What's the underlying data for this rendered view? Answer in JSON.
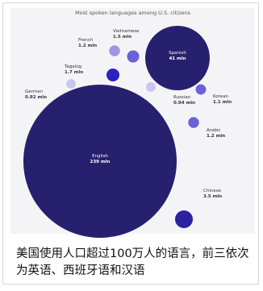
{
  "chart_data": {
    "type": "bubble",
    "title": "Most spoken languages among U.S. citizens",
    "unit": "mln",
    "series": [
      {
        "name": "English",
        "value": 239,
        "label": "239 mln",
        "color": "#27206e"
      },
      {
        "name": "Spanish",
        "value": 41,
        "label": "41 mln",
        "color": "#27206e"
      },
      {
        "name": "Chinese",
        "value": 3.5,
        "label": "3.5 mln",
        "color": "#2a22a0"
      },
      {
        "name": "Tagalog",
        "value": 1.7,
        "label": "1.7 mln",
        "color": "#2a22c2"
      },
      {
        "name": "Vietnamese",
        "value": 1.5,
        "label": "1.5 mln",
        "color": "#6a62d8"
      },
      {
        "name": "French",
        "value": 1.2,
        "label": "1.2 mln",
        "color": "#9c96e6"
      },
      {
        "name": "Arabic",
        "value": 1.2,
        "label": "1.2 mln",
        "color": "#6a62d8"
      },
      {
        "name": "Korean",
        "value": 1.1,
        "label": "1.1 mln",
        "color": "#6a62d8"
      },
      {
        "name": "German",
        "value": 0.92,
        "label": "0.92 mln",
        "color": "#c9c6f0"
      },
      {
        "name": "Russian",
        "value": 0.94,
        "label": "0.94 mln",
        "color": "#c9c6f0"
      }
    ]
  },
  "caption": "美国使用人口超过100万人的语言，前三依次为英语、西班牙语和汉语"
}
